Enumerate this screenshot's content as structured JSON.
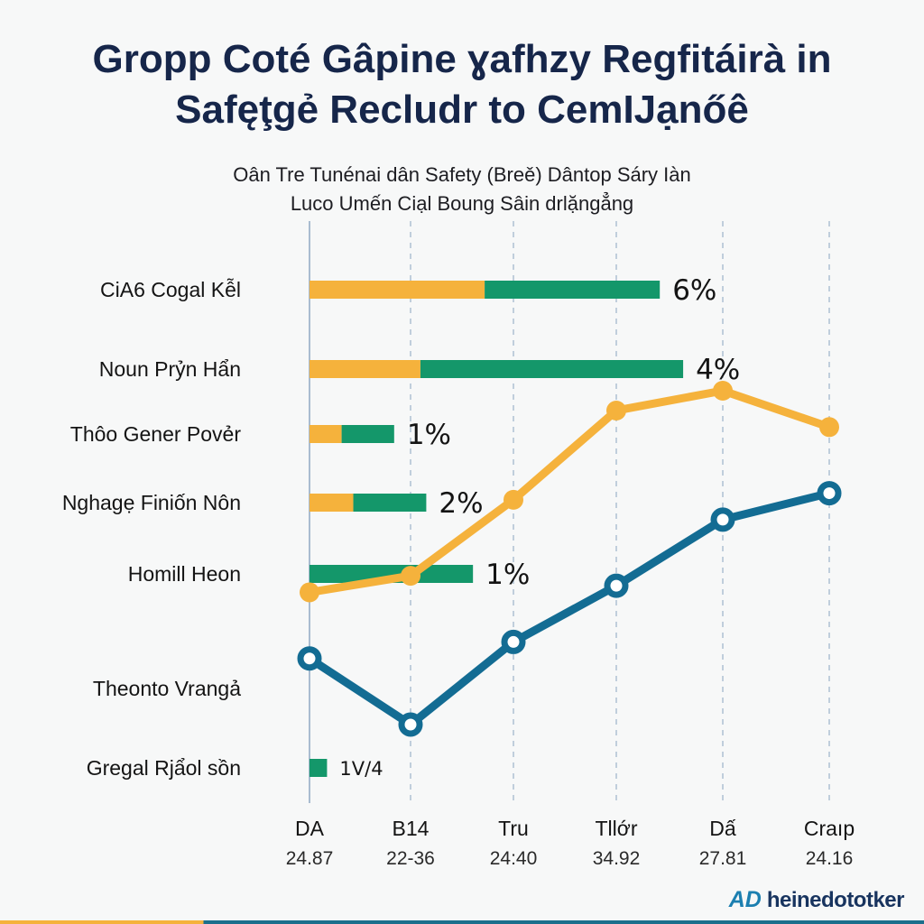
{
  "chart_data": {
    "type": "bar+line",
    "title_lines": [
      "Gropp Coté Gâpine ɣafhzy Regfitáirà in",
      "Safęţgẻ Recludr to CemIJạnőê"
    ],
    "subtitle_lines": [
      "Oân Tre Tunénai dân Safety (Breě) Dântop Sáry Iàn",
      "Luco Umến Ciạl Boung Sâin drlặngẳng"
    ],
    "colors": {
      "orange": "#f5b23c",
      "green": "#14976a",
      "blue": "#136c93",
      "grid": "#a9bcd0"
    },
    "bars": [
      {
        "category": "CiA6 Cogal Kễl",
        "orange": 3.0,
        "green": 3.0,
        "label": "6%"
      },
      {
        "category": "Noun Prỷn Hẩn",
        "orange": 1.9,
        "green": 4.5,
        "label": "4%"
      },
      {
        "category": "Thôo Gener Povẻr",
        "orange": 0.55,
        "green": 0.9,
        "label": "1%"
      },
      {
        "category": "Nghagẹ Finiốn Nôn",
        "orange": 0.75,
        "green": 1.25,
        "label": "2%"
      },
      {
        "category": "Homill Heon",
        "orange": 0.0,
        "green": 2.8,
        "label": "1%"
      },
      {
        "category": "Theonto Vrangả",
        "orange": 0.0,
        "green": 0.0,
        "label": ""
      },
      {
        "category": "Gregal Rjẩol sồn",
        "orange": 0.0,
        "green": 0.3,
        "label": "1V/4"
      }
    ],
    "x_axis": {
      "categories": [
        "DA",
        "B14",
        "Tru",
        "Tllớr",
        "Dấ",
        "Craıp"
      ],
      "values": [
        "24.87",
        "22-36",
        "24:40",
        "34.92",
        "27.81",
        "24.16"
      ],
      "bar_range": [
        0,
        6.4
      ]
    },
    "line_range": [
      0,
      10
    ],
    "series": [
      {
        "name": "orange",
        "values": [
          4.9,
          5.4,
          7.7,
          10.4,
          11.0,
          9.9
        ]
      },
      {
        "name": "blue",
        "values": [
          2.9,
          0.9,
          3.4,
          5.1,
          7.1,
          7.9
        ]
      }
    ]
  },
  "brand": {
    "logo": "AD",
    "text": "heinedototker"
  }
}
